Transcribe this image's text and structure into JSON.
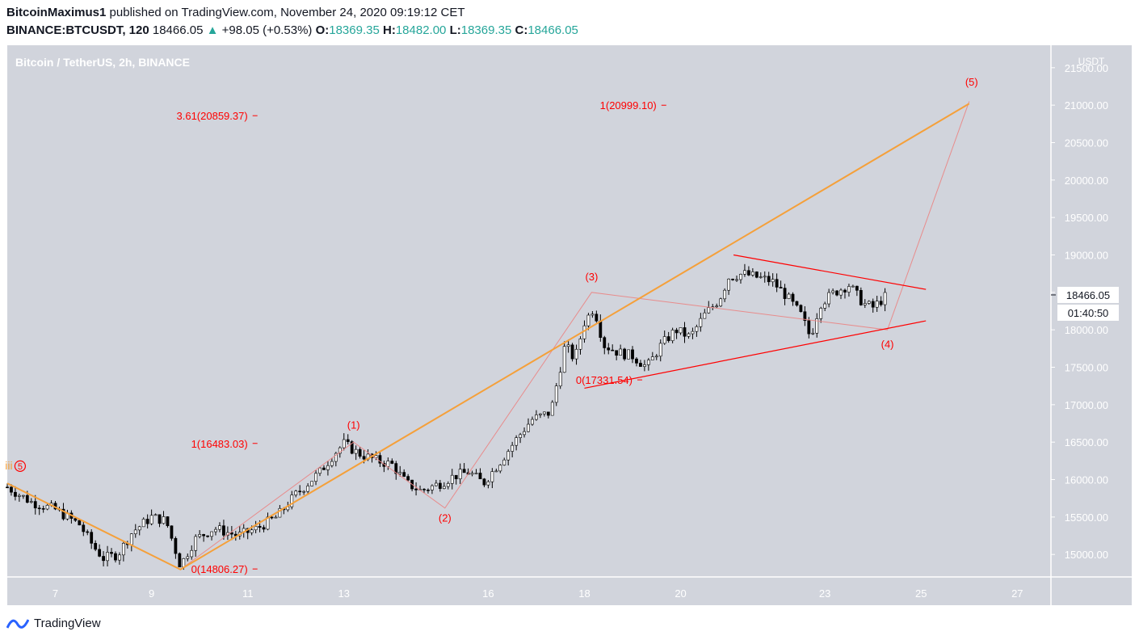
{
  "header": {
    "author": "BitcoinMaximus1",
    "published_text": "published on TradingView.com, November 24, 2020 09:19:12 CET",
    "symbol": "BINANCE:BTCUSDT, 120",
    "last": "18466.05",
    "change": "+98.05 (+0.53%)",
    "o_label": "O:",
    "o_value": "18369.35",
    "h_label": "H:",
    "h_value": "18482.00",
    "l_label": "L:",
    "l_value": "18369.35",
    "c_label": "C:",
    "c_value": "18466.05"
  },
  "footer": {
    "brand": "TradingView"
  },
  "colors": {
    "plot_bg": "#d1d4dc",
    "axis_bg": "#d1d4dc",
    "candle_up": "#ffffff",
    "candle_down": "#000000",
    "wave_label": "#ff0000",
    "orange_line": "#f5a03a",
    "pink_line": "#e88c8c",
    "triangle": "#ff0000"
  },
  "chart_data": {
    "type": "candlestick",
    "title": "Bitcoin / TetherUS, 2h, BINANCE",
    "currency_label": "USDT",
    "ylim": [
      14700,
      21800
    ],
    "y_ticks": [
      "15000.00",
      "15500.00",
      "16000.00",
      "16500.00",
      "17000.00",
      "17500.00",
      "18000.00",
      "18500.00",
      "19000.00",
      "19500.00",
      "20000.00",
      "20500.00",
      "21000.00",
      "21500.00"
    ],
    "x_ticks": [
      {
        "label": "7",
        "day": 7.0
      },
      {
        "label": "9",
        "day": 9.0
      },
      {
        "label": "11",
        "day": 11.0
      },
      {
        "label": "13",
        "day": 13.0
      },
      {
        "label": "16",
        "day": 16.0
      },
      {
        "label": "18",
        "day": 18.0
      },
      {
        "label": "20",
        "day": 20.0
      },
      {
        "label": "23",
        "day": 23.0
      },
      {
        "label": "25",
        "day": 25.0
      },
      {
        "label": "27",
        "day": 27.0
      }
    ],
    "last_price": "18466.05",
    "countdown": "01:40:50",
    "price_path": [
      [
        6.0,
        15900
      ],
      [
        6.5,
        15700
      ],
      [
        7.0,
        15600
      ],
      [
        7.5,
        15400
      ],
      [
        7.8,
        15100
      ],
      [
        8.0,
        14950
      ],
      [
        8.3,
        15000
      ],
      [
        8.6,
        15300
      ],
      [
        9.0,
        15500
      ],
      [
        9.3,
        15450
      ],
      [
        9.6,
        14850
      ],
      [
        9.9,
        15200
      ],
      [
        10.3,
        15350
      ],
      [
        10.8,
        15250
      ],
      [
        11.2,
        15350
      ],
      [
        11.6,
        15500
      ],
      [
        12.0,
        15800
      ],
      [
        12.5,
        16100
      ],
      [
        12.8,
        16350
      ],
      [
        13.0,
        16480
      ],
      [
        13.3,
        16350
      ],
      [
        13.7,
        16250
      ],
      [
        14.0,
        16200
      ],
      [
        14.3,
        15950
      ],
      [
        14.6,
        15850
      ],
      [
        15.0,
        15950
      ],
      [
        15.3,
        16050
      ],
      [
        15.6,
        16100
      ],
      [
        15.9,
        15950
      ],
      [
        16.2,
        16200
      ],
      [
        16.6,
        16550
      ],
      [
        16.9,
        16800
      ],
      [
        17.3,
        16900
      ],
      [
        17.6,
        17800
      ],
      [
        17.8,
        17600
      ],
      [
        18.0,
        18100
      ],
      [
        18.2,
        18300
      ],
      [
        18.4,
        17800
      ],
      [
        18.7,
        17700
      ],
      [
        19.0,
        17650
      ],
      [
        19.3,
        17500
      ],
      [
        19.6,
        17800
      ],
      [
        19.9,
        18000
      ],
      [
        20.2,
        17900
      ],
      [
        20.5,
        18200
      ],
      [
        20.8,
        18400
      ],
      [
        21.0,
        18700
      ],
      [
        21.3,
        18750
      ],
      [
        21.6,
        18700
      ],
      [
        21.9,
        18650
      ],
      [
        22.2,
        18450
      ],
      [
        22.5,
        18200
      ],
      [
        22.7,
        17900
      ],
      [
        22.9,
        18350
      ],
      [
        23.2,
        18500
      ],
      [
        23.5,
        18600
      ],
      [
        23.8,
        18350
      ],
      [
        24.0,
        18300
      ],
      [
        24.3,
        18466
      ]
    ],
    "wave_labels": [
      {
        "text": "(1)",
        "day": 13.2,
        "price": 16680
      },
      {
        "text": "(2)",
        "day": 15.1,
        "price": 15440
      },
      {
        "text": "(3)",
        "day": 18.15,
        "price": 18660
      },
      {
        "text": "(4)",
        "day": 24.3,
        "price": 17760
      },
      {
        "text": "(5)",
        "day": 26.05,
        "price": 21260
      }
    ],
    "completed_wave_label": {
      "prefix": "iii",
      "text": "5",
      "day": 6.2,
      "price": 16180
    },
    "fib_levels": [
      {
        "text": "3.61(20859.37)",
        "day": 11.0,
        "price": 20859.37
      },
      {
        "text": "1(20999.10)",
        "day": 19.5,
        "price": 20999.1
      },
      {
        "text": "1(16483.03)",
        "day": 11.0,
        "price": 16483.03
      },
      {
        "text": "0(17331.54)",
        "day": 19.0,
        "price": 17331.54
      },
      {
        "text": "0(14806.27)",
        "day": 11.0,
        "price": 14806.27
      }
    ],
    "orange_channel": [
      [
        6.0,
        15950
      ],
      [
        9.6,
        14800
      ],
      [
        26.0,
        21020
      ]
    ],
    "pink_wave_path": [
      [
        9.6,
        14800
      ],
      [
        13.2,
        16500
      ],
      [
        15.1,
        15620
      ],
      [
        18.15,
        18500
      ],
      [
        24.3,
        18000
      ],
      [
        26.0,
        21050
      ]
    ],
    "triangle_upper": [
      [
        21.1,
        19000
      ],
      [
        25.1,
        18540
      ]
    ],
    "triangle_lower": [
      [
        18.0,
        17220
      ],
      [
        25.1,
        18120
      ]
    ]
  }
}
